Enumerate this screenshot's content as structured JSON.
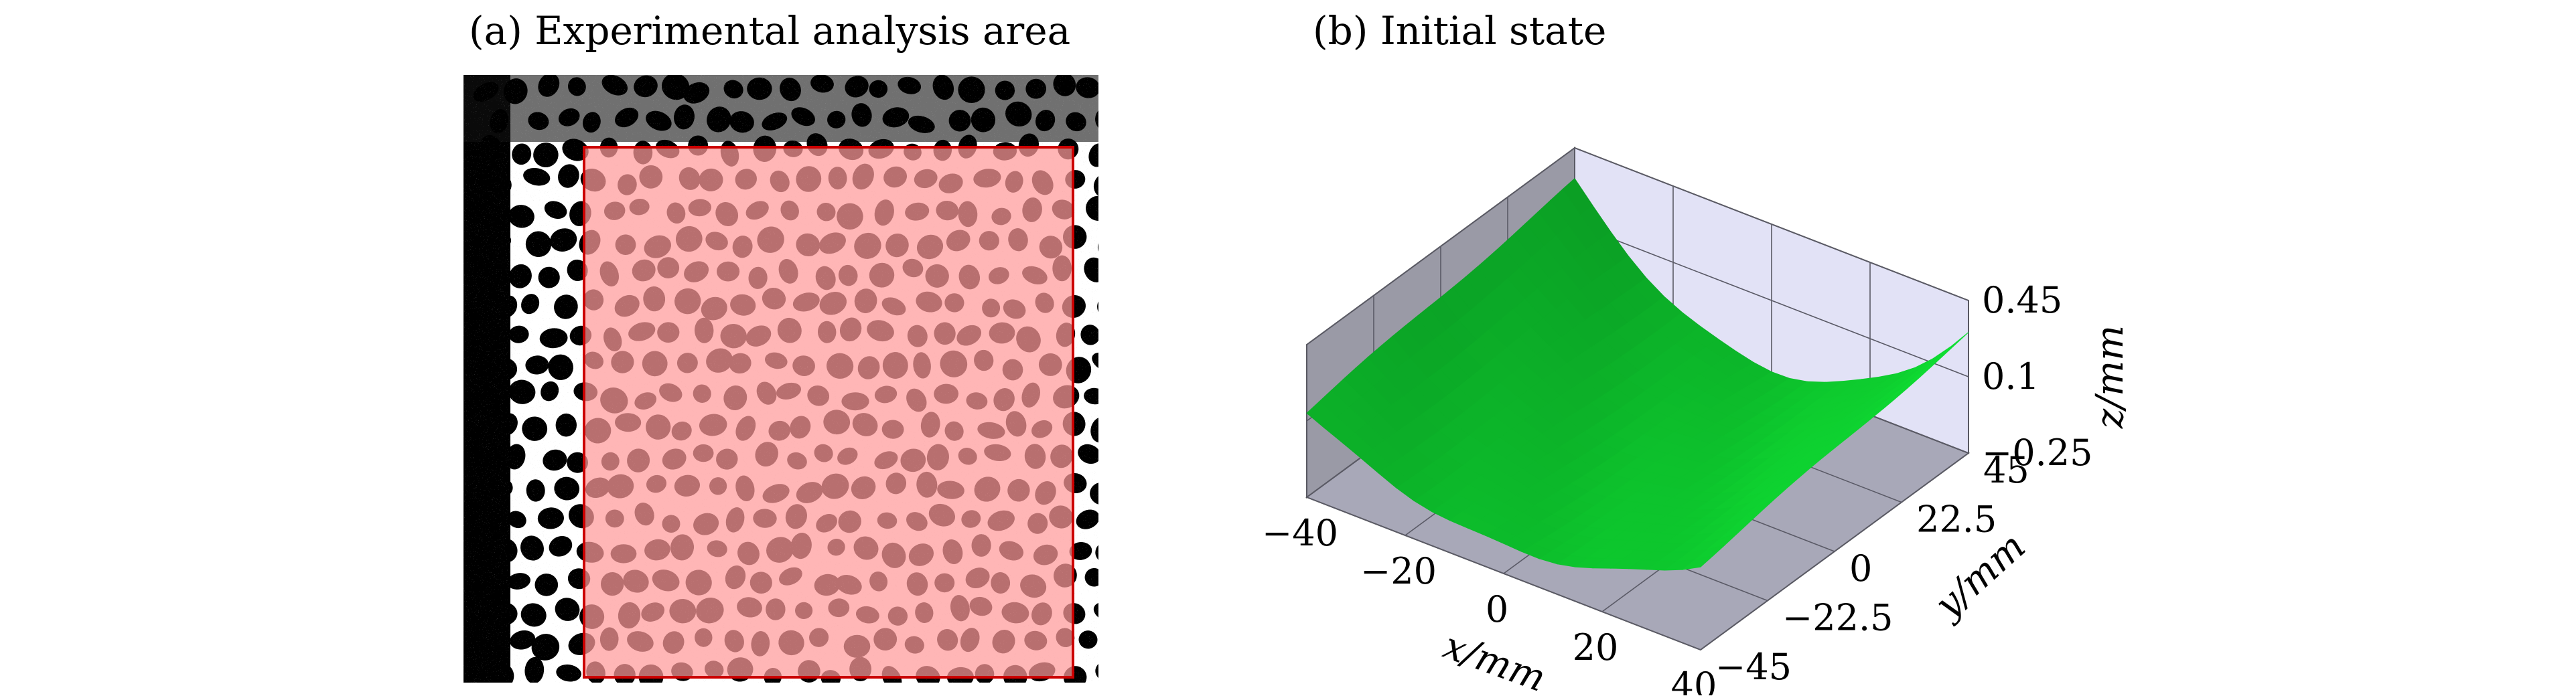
{
  "panels": {
    "a": {
      "title": "(a) Experimental analysis area"
    },
    "b": {
      "title": "(b) Initial state"
    }
  },
  "colors": {
    "overlay_fill": "#ff9a9a",
    "overlay_edge": "#cc0000",
    "surface": "#11dd33",
    "pane_floor": "#a8a8b8",
    "pane_left": "#9a9aa6",
    "pane_back": "#e2e2f6"
  },
  "chart_data": {
    "type": "surface3d",
    "xlabel": "x/mm",
    "ylabel": "y/mm",
    "zlabel": "z/mm",
    "xlim": [
      -40,
      40
    ],
    "ylim": [
      -45,
      45
    ],
    "zlim": [
      -0.25,
      0.45
    ],
    "x_ticks": [
      "−40",
      "−20",
      "0",
      "20",
      "40"
    ],
    "y_ticks": [
      "−45",
      "−22.5",
      "0",
      "22.5",
      "45"
    ],
    "z_ticks": [
      "−0.25",
      "0.1",
      "0.45"
    ],
    "x_tick_values": [
      -40,
      -20,
      0,
      20,
      40
    ],
    "y_tick_values": [
      -45,
      -22.5,
      0,
      22.5,
      45
    ],
    "z_tick_values": [
      -0.25,
      0.1,
      0.45
    ],
    "grid": true
  }
}
